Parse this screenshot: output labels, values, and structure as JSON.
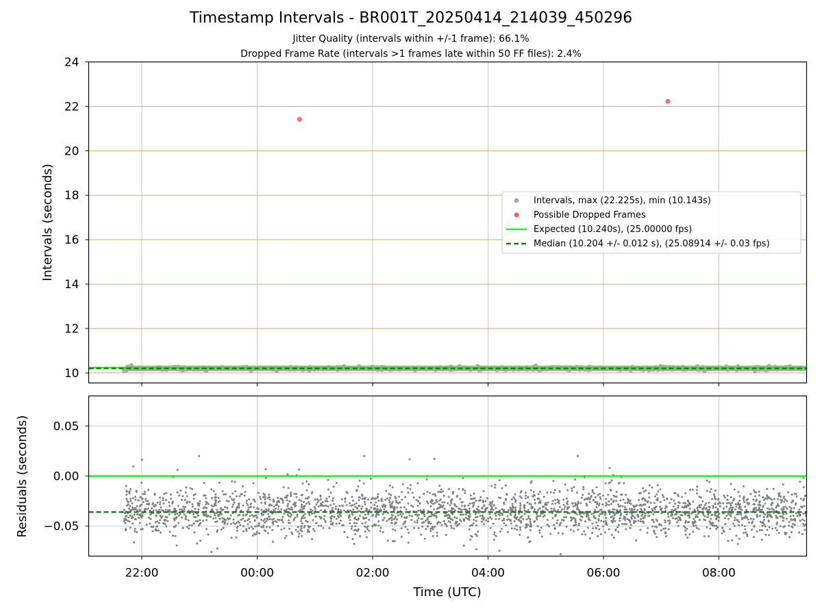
{
  "chart_data": [
    {
      "type": "scatter",
      "title": "Timestamp Intervals - BR001T_20250414_214039_450296",
      "subtitle_lines": [
        "Jitter Quality (intervals within +/-1 frame): 66.1%",
        "Dropped Frame Rate (intervals >1 frames late within 50 FF files): 2.4%"
      ],
      "xlabel": "",
      "ylabel": "Intervals (seconds)",
      "ylim": [
        9.55,
        24
      ],
      "yticks": [
        10,
        12,
        14,
        16,
        18,
        20,
        22,
        24
      ],
      "ytick_labels": [
        "10",
        "12",
        "14",
        "16",
        "18",
        "20",
        "22",
        "24"
      ],
      "xlim_hours": [
        21.08,
        33.52
      ],
      "xticks_hours": [
        22,
        24,
        26,
        28,
        30,
        32
      ],
      "xtick_labels": [
        "22:00",
        "00:00",
        "02:00",
        "04:00",
        "06:00",
        "08:00"
      ],
      "grid": true,
      "legend_placement": "center-right",
      "series": [
        {
          "name": "Intervals, max (22.225s), min (10.143s)",
          "color": "#a9a9a9",
          "kind": "scatter",
          "x_start": "21:41",
          "x_end": "09:31",
          "y_typical": 10.204
        },
        {
          "name": "Possible Dropped Frames",
          "color": "#ff5c5c",
          "kind": "scatter",
          "points": [
            {
              "x": "00:44",
              "y": 21.42
            },
            {
              "x": "07:07",
              "y": 22.225
            }
          ]
        },
        {
          "name": "Expected (10.240s), (25.00000 fps)",
          "color": "#22ee22",
          "kind": "hline",
          "y": 10.24
        },
        {
          "name": "Median (10.204 +/- 0.012 s), (25.08914 +/- 0.03 fps)",
          "color": "#1a7a1a",
          "kind": "hline-dashed",
          "y": 10.204
        }
      ],
      "colors": {
        "frame_gridline": "#c9b06a",
        "time_gridline": "#c8c8c8"
      }
    },
    {
      "type": "scatter",
      "xlabel": "Time (UTC)",
      "ylabel": "Residuals (seconds)",
      "ylim": [
        -0.08,
        0.08
      ],
      "yticks": [
        -0.05,
        0.0,
        0.05
      ],
      "ytick_labels": [
        "−0.05",
        "0.00",
        "0.05"
      ],
      "xlim_hours": [
        21.08,
        33.52
      ],
      "xticks_hours": [
        22,
        24,
        26,
        28,
        30,
        32
      ],
      "xtick_labels": [
        "22:00",
        "00:00",
        "02:00",
        "04:00",
        "06:00",
        "08:00"
      ],
      "grid": true,
      "series": [
        {
          "kind": "scatter",
          "color": "#808080",
          "x_start": "21:41",
          "x_end": "09:31",
          "center": -0.036,
          "spread": 0.012,
          "min": -0.078,
          "max": 0.02
        },
        {
          "kind": "hline",
          "color": "#22ee22",
          "y": 0.0
        },
        {
          "kind": "hline-dashed",
          "color": "#1a7a1a",
          "y": -0.036
        }
      ]
    }
  ]
}
